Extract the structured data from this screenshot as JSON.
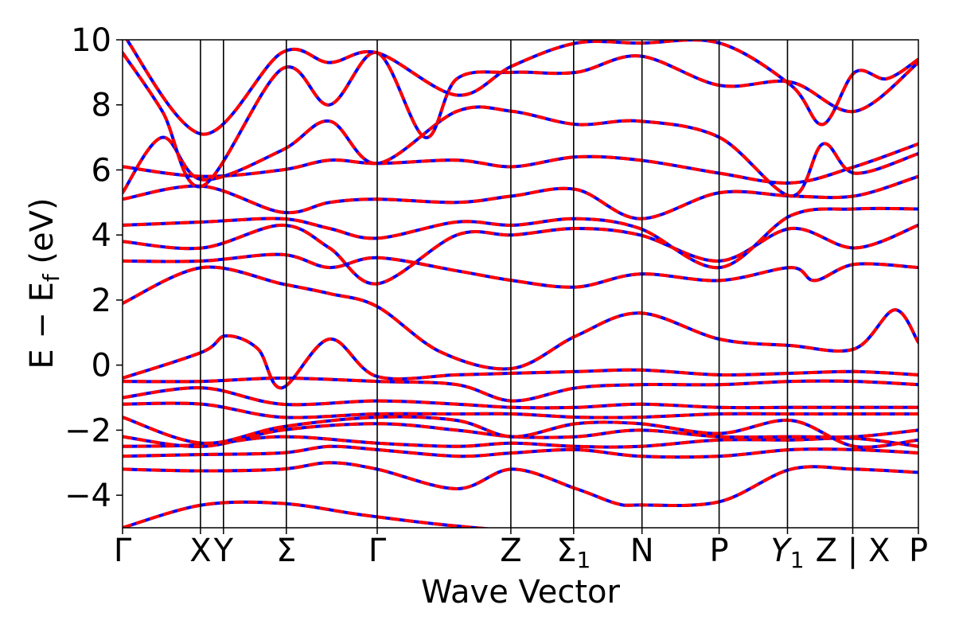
{
  "chart_data": {
    "type": "line",
    "title": "",
    "xlabel": "Wave Vector",
    "ylabel": "E − E",
    "ylabel_sub": "f",
    "ylabel_unit": " (eV)",
    "ylim": [
      -5,
      10
    ],
    "yticks": [
      {
        "value": -4,
        "label": "−4"
      },
      {
        "value": -2,
        "label": "−2"
      },
      {
        "value": 0,
        "label": "0"
      },
      {
        "value": 2,
        "label": "2"
      },
      {
        "value": 4,
        "label": "4"
      },
      {
        "value": 6,
        "label": "6"
      },
      {
        "value": 8,
        "label": "8"
      },
      {
        "value": 10,
        "label": "10"
      }
    ],
    "xlim": [
      0,
      1
    ],
    "kpoints": [
      {
        "label": "Γ",
        "sub": "",
        "x": 0.0
      },
      {
        "label": "X",
        "sub": "",
        "x": 0.0979
      },
      {
        "label": "Y",
        "sub": "",
        "x": 0.1268
      },
      {
        "label": "Σ",
        "sub": "",
        "x": 0.2058
      },
      {
        "label": "Γ",
        "sub": "",
        "x": 0.32
      },
      {
        "label": "Z",
        "sub": "",
        "x": 0.4879
      },
      {
        "label": "Σ",
        "sub": "1",
        "x": 0.5668
      },
      {
        "label": "N",
        "sub": "",
        "x": 0.6527
      },
      {
        "label": "P",
        "sub": "",
        "x": 0.7496
      },
      {
        "label": "Y",
        "sub": "1",
        "x": 0.8355
      },
      {
        "label": "Z | X",
        "sub": "",
        "x": 0.9175
      },
      {
        "label": "P",
        "sub": "",
        "x": 1.0
      }
    ],
    "series": [
      {
        "color": "#0000ff",
        "style": "solid"
      },
      {
        "color": "#ff0000",
        "style": "dashed"
      }
    ],
    "bands": [
      [
        [
          0,
          -5
        ],
        [
          0.1,
          -4.3
        ],
        [
          0.2,
          -4.25
        ],
        [
          0.3,
          -4.6
        ],
        [
          0.4,
          -4.9
        ],
        [
          0.49,
          -5.1
        ]
      ],
      [
        [
          0,
          -3.2
        ],
        [
          0.1,
          -3.25
        ],
        [
          0.2,
          -3.2
        ],
        [
          0.26,
          -3.0
        ],
        [
          0.32,
          -3.2
        ],
        [
          0.42,
          -3.8
        ],
        [
          0.49,
          -3.2
        ],
        [
          0.57,
          -3.8
        ],
        [
          0.62,
          -4.25
        ],
        [
          0.65,
          -4.3
        ],
        [
          0.75,
          -4.2
        ],
        [
          0.84,
          -3.2
        ],
        [
          0.92,
          -3.2
        ],
        [
          1.0,
          -3.3
        ]
      ],
      [
        [
          0,
          -2.8
        ],
        [
          0.1,
          -2.75
        ],
        [
          0.2,
          -2.7
        ],
        [
          0.26,
          -2.5
        ],
        [
          0.32,
          -2.6
        ],
        [
          0.42,
          -2.8
        ],
        [
          0.49,
          -2.7
        ],
        [
          0.57,
          -2.6
        ],
        [
          0.65,
          -2.8
        ],
        [
          0.75,
          -2.8
        ],
        [
          0.84,
          -2.6
        ],
        [
          0.92,
          -2.6
        ],
        [
          1.0,
          -2.7
        ]
      ],
      [
        [
          0,
          -2.5
        ],
        [
          0.1,
          -2.45
        ],
        [
          0.2,
          -2.2
        ],
        [
          0.32,
          -2.4
        ],
        [
          0.42,
          -2.5
        ],
        [
          0.49,
          -2.4
        ],
        [
          0.57,
          -2.5
        ],
        [
          0.65,
          -2.5
        ],
        [
          0.75,
          -2.3
        ],
        [
          0.84,
          -2.3
        ],
        [
          0.92,
          -2.25
        ],
        [
          1.0,
          -2.5
        ]
      ],
      [
        [
          0,
          -2.2
        ],
        [
          0.1,
          -2.5
        ],
        [
          0.2,
          -2.0
        ],
        [
          0.32,
          -1.8
        ],
        [
          0.42,
          -2.0
        ],
        [
          0.49,
          -2.2
        ],
        [
          0.57,
          -2.2
        ],
        [
          0.65,
          -2.0
        ],
        [
          0.75,
          -2.2
        ],
        [
          0.84,
          -2.2
        ],
        [
          0.92,
          -2.2
        ],
        [
          1.0,
          -2.0
        ]
      ],
      [
        [
          0,
          -1.6
        ],
        [
          0.1,
          -2.4
        ],
        [
          0.2,
          -1.9
        ],
        [
          0.32,
          -1.6
        ],
        [
          0.42,
          -1.7
        ],
        [
          0.49,
          -2.2
        ],
        [
          0.57,
          -1.8
        ],
        [
          0.65,
          -1.8
        ],
        [
          0.75,
          -2.1
        ],
        [
          0.84,
          -1.7
        ],
        [
          0.92,
          -2.5
        ],
        [
          1.0,
          -2.3
        ]
      ],
      [
        [
          0,
          -1.2
        ],
        [
          0.1,
          -1.2
        ],
        [
          0.2,
          -1.6
        ],
        [
          0.32,
          -1.5
        ],
        [
          0.42,
          -1.5
        ],
        [
          0.49,
          -1.5
        ],
        [
          0.57,
          -1.6
        ],
        [
          0.65,
          -1.6
        ],
        [
          0.75,
          -1.5
        ],
        [
          0.84,
          -1.5
        ],
        [
          0.92,
          -1.5
        ],
        [
          1.0,
          -1.5
        ]
      ],
      [
        [
          0,
          -1.0
        ],
        [
          0.1,
          -0.7
        ],
        [
          0.2,
          -1.2
        ],
        [
          0.32,
          -1.1
        ],
        [
          0.42,
          -1.2
        ],
        [
          0.49,
          -1.3
        ],
        [
          0.57,
          -1.3
        ],
        [
          0.65,
          -1.2
        ],
        [
          0.75,
          -1.3
        ],
        [
          0.84,
          -1.3
        ],
        [
          0.92,
          -1.3
        ],
        [
          1.0,
          -1.3
        ]
      ],
      [
        [
          0,
          -0.5
        ],
        [
          0.1,
          -0.5
        ],
        [
          0.2,
          -0.4
        ],
        [
          0.32,
          -0.5
        ],
        [
          0.42,
          -0.6
        ],
        [
          0.49,
          -1.1
        ],
        [
          0.57,
          -0.7
        ],
        [
          0.65,
          -0.6
        ],
        [
          0.75,
          -0.6
        ],
        [
          0.84,
          -0.5
        ],
        [
          0.92,
          -0.5
        ],
        [
          1.0,
          -0.6
        ]
      ],
      [
        [
          0,
          -0.4
        ],
        [
          0.1,
          0.4
        ],
        [
          0.13,
          0.9
        ],
        [
          0.17,
          0.5
        ],
        [
          0.2,
          -0.7
        ],
        [
          0.26,
          0.8
        ],
        [
          0.32,
          -0.35
        ],
        [
          0.42,
          -0.3
        ],
        [
          0.49,
          -0.25
        ],
        [
          0.57,
          -0.2
        ],
        [
          0.65,
          -0.15
        ],
        [
          0.75,
          -0.3
        ],
        [
          0.84,
          -0.25
        ],
        [
          0.92,
          -0.2
        ],
        [
          1.0,
          -0.3
        ]
      ],
      [
        [
          0,
          1.9
        ],
        [
          0.1,
          3.0
        ],
        [
          0.2,
          2.5
        ],
        [
          0.26,
          2.2
        ],
        [
          0.32,
          1.8
        ],
        [
          0.4,
          0.4
        ],
        [
          0.49,
          -0.1
        ],
        [
          0.57,
          0.9
        ],
        [
          0.65,
          1.6
        ],
        [
          0.75,
          0.8
        ],
        [
          0.84,
          0.6
        ],
        [
          0.92,
          0.5
        ],
        [
          0.97,
          1.7
        ],
        [
          1.0,
          0.7
        ]
      ],
      [
        [
          0,
          3.2
        ],
        [
          0.1,
          3.2
        ],
        [
          0.2,
          3.4
        ],
        [
          0.26,
          3.0
        ],
        [
          0.32,
          3.3
        ],
        [
          0.42,
          2.9
        ],
        [
          0.49,
          2.6
        ],
        [
          0.57,
          2.4
        ],
        [
          0.65,
          2.8
        ],
        [
          0.75,
          2.6
        ],
        [
          0.84,
          3.0
        ],
        [
          0.87,
          2.6
        ],
        [
          0.92,
          3.1
        ],
        [
          1.0,
          3.0
        ]
      ],
      [
        [
          0,
          3.8
        ],
        [
          0.1,
          3.6
        ],
        [
          0.2,
          4.3
        ],
        [
          0.26,
          3.6
        ],
        [
          0.32,
          2.5
        ],
        [
          0.42,
          4.0
        ],
        [
          0.49,
          4.0
        ],
        [
          0.57,
          4.2
        ],
        [
          0.65,
          4.0
        ],
        [
          0.75,
          3.2
        ],
        [
          0.84,
          4.2
        ],
        [
          0.92,
          3.6
        ],
        [
          1.0,
          4.3
        ]
      ],
      [
        [
          0,
          4.3
        ],
        [
          0.1,
          4.4
        ],
        [
          0.2,
          4.5
        ],
        [
          0.26,
          4.2
        ],
        [
          0.32,
          3.9
        ],
        [
          0.42,
          4.4
        ],
        [
          0.49,
          4.3
        ],
        [
          0.57,
          4.5
        ],
        [
          0.65,
          4.2
        ],
        [
          0.75,
          3.0
        ],
        [
          0.84,
          4.6
        ],
        [
          0.92,
          4.8
        ],
        [
          1.0,
          4.8
        ]
      ],
      [
        [
          0,
          5.1
        ],
        [
          0.1,
          5.5
        ],
        [
          0.2,
          4.7
        ],
        [
          0.26,
          5.0
        ],
        [
          0.32,
          5.1
        ],
        [
          0.42,
          5.0
        ],
        [
          0.49,
          5.2
        ],
        [
          0.57,
          5.4
        ],
        [
          0.65,
          4.5
        ],
        [
          0.75,
          5.3
        ],
        [
          0.84,
          5.2
        ],
        [
          0.92,
          5.2
        ],
        [
          1.0,
          5.8
        ]
      ],
      [
        [
          0,
          6.1
        ],
        [
          0.1,
          5.8
        ],
        [
          0.2,
          6.0
        ],
        [
          0.26,
          6.3
        ],
        [
          0.32,
          6.2
        ],
        [
          0.42,
          6.3
        ],
        [
          0.49,
          6.1
        ],
        [
          0.57,
          6.4
        ],
        [
          0.65,
          6.3
        ],
        [
          0.75,
          5.9
        ],
        [
          0.84,
          5.6
        ],
        [
          0.92,
          6.1
        ],
        [
          1.0,
          6.8
        ]
      ],
      [
        [
          0,
          5.3
        ],
        [
          0.05,
          7.0
        ],
        [
          0.1,
          5.7
        ],
        [
          0.2,
          6.6
        ],
        [
          0.26,
          7.5
        ],
        [
          0.32,
          6.2
        ],
        [
          0.42,
          7.8
        ],
        [
          0.49,
          7.8
        ],
        [
          0.57,
          7.4
        ],
        [
          0.65,
          7.5
        ],
        [
          0.75,
          7.0
        ],
        [
          0.84,
          5.2
        ],
        [
          0.88,
          6.8
        ],
        [
          0.92,
          5.9
        ],
        [
          1.0,
          6.5
        ]
      ],
      [
        [
          0,
          9.6
        ],
        [
          0.05,
          7.8
        ],
        [
          0.1,
          5.5
        ],
        [
          0.2,
          9.1
        ],
        [
          0.26,
          8.0
        ],
        [
          0.32,
          9.6
        ],
        [
          0.38,
          7.0
        ],
        [
          0.42,
          8.8
        ],
        [
          0.49,
          9.0
        ],
        [
          0.57,
          9.0
        ],
        [
          0.65,
          9.5
        ],
        [
          0.75,
          8.6
        ],
        [
          0.84,
          8.7
        ],
        [
          0.92,
          7.8
        ],
        [
          1.0,
          9.3
        ]
      ],
      [
        [
          0,
          10.2
        ],
        [
          0.1,
          7.1
        ],
        [
          0.2,
          9.6
        ],
        [
          0.26,
          9.3
        ],
        [
          0.32,
          9.6
        ],
        [
          0.42,
          8.3
        ],
        [
          0.49,
          9.2
        ],
        [
          0.57,
          9.9
        ],
        [
          0.65,
          9.9
        ],
        [
          0.75,
          9.9
        ],
        [
          0.84,
          8.6
        ],
        [
          0.88,
          7.4
        ],
        [
          0.92,
          9.0
        ],
        [
          0.96,
          8.8
        ],
        [
          1.0,
          9.4
        ]
      ]
    ]
  }
}
